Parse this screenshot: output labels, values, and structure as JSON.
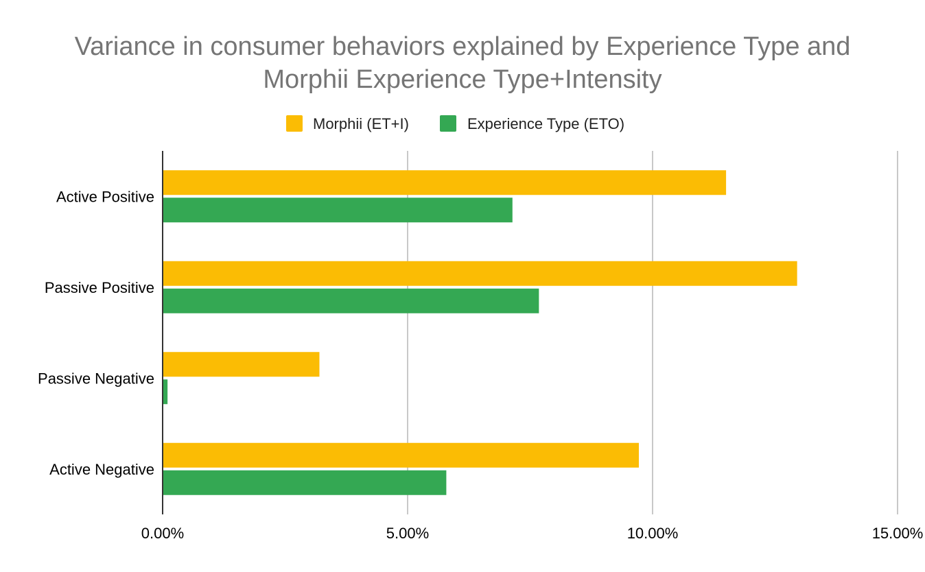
{
  "chart_data": {
    "type": "bar",
    "orientation": "horizontal",
    "title": [
      "Variance in consumer behaviors explained by Experience Type and",
      "Morphii Experience Type+Intensity"
    ],
    "categories": [
      "Active Positive",
      "Passive Positive",
      "Passive Negative",
      "Active Negative"
    ],
    "series": [
      {
        "name": "Morphii (ET+I)",
        "color": "#FBBC04",
        "values": [
          11.5,
          12.95,
          3.2,
          9.72
        ]
      },
      {
        "name": "Experience Type (ETO)",
        "color": "#34A853",
        "values": [
          7.14,
          7.68,
          0.1,
          5.79
        ]
      }
    ],
    "xlim": [
      0,
      15
    ],
    "x_ticks": [
      "0.00%",
      "5.00%",
      "10.00%",
      "15.00%"
    ],
    "x_tick_values": [
      0,
      5,
      10,
      15
    ],
    "grid": true,
    "legend_position": "top-center"
  }
}
